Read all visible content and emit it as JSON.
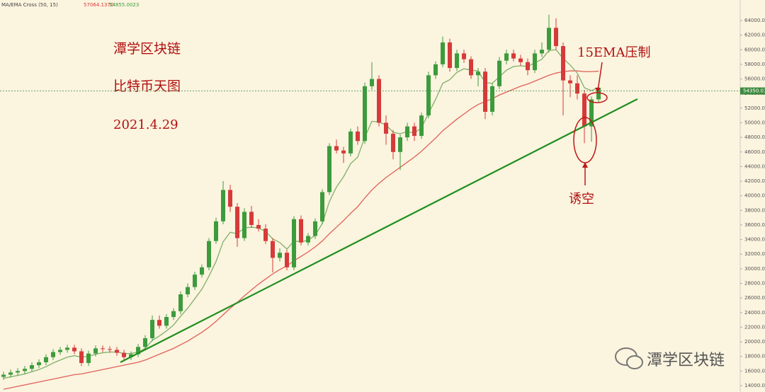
{
  "chart_data": {
    "type": "candlestick",
    "indicator": "MA/EMA Cross (50, 15)",
    "readouts": [
      {
        "value": 57064.137,
        "label": "57064.1370",
        "color": "#d63a3a"
      },
      {
        "value": 54855.0023,
        "label": "54855.0023",
        "color": "#3d9b3d"
      }
    ],
    "up_color": "#3d9b3d",
    "down_color": "#d63a3a",
    "ylim": [
      13128,
      66810
    ],
    "yticks": [
      {
        "value": 14000,
        "label": "14000.00"
      },
      {
        "value": 16000,
        "label": "16000.00"
      },
      {
        "value": 18000,
        "label": "18000.00"
      },
      {
        "value": 20000,
        "label": "20000.00"
      },
      {
        "value": 22000,
        "label": "22000.00"
      },
      {
        "value": 24000,
        "label": "24000.00"
      },
      {
        "value": 26000,
        "label": "26000.00"
      },
      {
        "value": 28000,
        "label": "28000.00"
      },
      {
        "value": 30000,
        "label": "30000.00"
      },
      {
        "value": 32000,
        "label": "32000.00"
      },
      {
        "value": 34000,
        "label": "34000.00"
      },
      {
        "value": 36000,
        "label": "36000.00"
      },
      {
        "value": 38000,
        "label": "38000.00"
      },
      {
        "value": 40000,
        "label": "40000.00"
      },
      {
        "value": 42000,
        "label": "42000.00"
      },
      {
        "value": 44000,
        "label": "44000.00"
      },
      {
        "value": 46000,
        "label": "46000.00"
      },
      {
        "value": 48000,
        "label": "48000.00"
      },
      {
        "value": 50000,
        "label": "50000.00"
      },
      {
        "value": 52000,
        "label": "52000.00"
      },
      {
        "value": 54000,
        "label": "54000.00"
      },
      {
        "value": 56000,
        "label": "56000.00"
      },
      {
        "value": 58000,
        "label": "58000.00"
      },
      {
        "value": 60000,
        "label": "60000.00"
      },
      {
        "value": 62000,
        "label": "62000.00"
      },
      {
        "value": 64000,
        "label": "64000.00"
      }
    ],
    "last_price": 54350.01,
    "last_price_color": "#3d8a3d",
    "ohlc": [
      [
        15200,
        15900,
        14800,
        15500
      ],
      [
        15500,
        16200,
        15100,
        15800
      ],
      [
        15800,
        16400,
        15400,
        16000
      ],
      [
        16000,
        16700,
        15600,
        16300
      ],
      [
        16300,
        17200,
        15900,
        16800
      ],
      [
        16800,
        17600,
        16400,
        17200
      ],
      [
        17200,
        18300,
        16800,
        17900
      ],
      [
        17900,
        19000,
        17500,
        18600
      ],
      [
        18600,
        19300,
        18200,
        18900
      ],
      [
        18900,
        19600,
        18500,
        19200
      ],
      [
        19200,
        19600,
        18300,
        18700
      ],
      [
        18700,
        19100,
        16700,
        17100
      ],
      [
        17100,
        18800,
        16700,
        18400
      ],
      [
        18400,
        19500,
        18000,
        19100
      ],
      [
        19100,
        19500,
        18600,
        19000
      ],
      [
        19000,
        19400,
        18500,
        18900
      ],
      [
        18900,
        19300,
        18100,
        18500
      ],
      [
        18500,
        18900,
        17500,
        17900
      ],
      [
        17900,
        18700,
        17500,
        18300
      ],
      [
        18300,
        19700,
        17900,
        19300
      ],
      [
        19300,
        20900,
        18900,
        20500
      ],
      [
        20500,
        23600,
        20100,
        23000
      ],
      [
        23000,
        23600,
        21800,
        22200
      ],
      [
        22200,
        23800,
        21800,
        23400
      ],
      [
        23400,
        24600,
        23000,
        24200
      ],
      [
        24200,
        26900,
        23800,
        26500
      ],
      [
        26500,
        28000,
        26100,
        27500
      ],
      [
        27500,
        29600,
        27100,
        29200
      ],
      [
        29200,
        30600,
        28800,
        30200
      ],
      [
        30200,
        34200,
        29800,
        33800
      ],
      [
        33800,
        37000,
        33400,
        36500
      ],
      [
        36500,
        42000,
        36100,
        40800
      ],
      [
        40800,
        41500,
        37800,
        38500
      ],
      [
        38500,
        39000,
        33000,
        34200
      ],
      [
        34200,
        38300,
        33800,
        37800
      ],
      [
        37800,
        38600,
        35600,
        36000
      ],
      [
        36000,
        36800,
        35100,
        35500
      ],
      [
        35500,
        36100,
        33400,
        33800
      ],
      [
        33800,
        34200,
        29500,
        31500
      ],
      [
        31500,
        32800,
        31000,
        32200
      ],
      [
        32200,
        32600,
        29800,
        30200
      ],
      [
        30200,
        37200,
        29800,
        36800
      ],
      [
        36800,
        37300,
        33200,
        33600
      ],
      [
        33600,
        34900,
        33200,
        34500
      ],
      [
        34500,
        36900,
        34100,
        36500
      ],
      [
        36500,
        40900,
        36100,
        40500
      ],
      [
        40500,
        47200,
        40100,
        46800
      ],
      [
        46800,
        47700,
        45800,
        46200
      ],
      [
        46200,
        46700,
        44500,
        45800
      ],
      [
        45800,
        49200,
        45400,
        48800
      ],
      [
        48800,
        49500,
        47000,
        47500
      ],
      [
        47500,
        55500,
        47100,
        55000
      ],
      [
        55000,
        58300,
        54500,
        56000
      ],
      [
        56000,
        56500,
        49500,
        50000
      ],
      [
        50000,
        51000,
        47000,
        48500
      ],
      [
        48500,
        49000,
        45000,
        46000
      ],
      [
        46000,
        48400,
        43500,
        48000
      ],
      [
        48000,
        50000,
        47500,
        49500
      ],
      [
        49500,
        50000,
        47500,
        48200
      ],
      [
        48200,
        51400,
        47800,
        51000
      ],
      [
        51000,
        57000,
        50600,
        56500
      ],
      [
        56500,
        58400,
        56000,
        58000
      ],
      [
        58000,
        61800,
        57600,
        61000
      ],
      [
        61000,
        61500,
        57000,
        57500
      ],
      [
        57500,
        60000,
        57100,
        59500
      ],
      [
        59500,
        60000,
        58200,
        58700
      ],
      [
        58700,
        59100,
        56000,
        56500
      ],
      [
        56500,
        57500,
        55000,
        57000
      ],
      [
        57000,
        57500,
        50500,
        51500
      ],
      [
        51500,
        55400,
        51000,
        55000
      ],
      [
        55000,
        59000,
        54600,
        58500
      ],
      [
        58500,
        60000,
        58000,
        59500
      ],
      [
        59500,
        60000,
        58400,
        58800
      ],
      [
        58800,
        59300,
        57800,
        58300
      ],
      [
        58300,
        58800,
        56500,
        57200
      ],
      [
        57200,
        60000,
        56800,
        59500
      ],
      [
        59500,
        61000,
        59000,
        60000
      ],
      [
        60000,
        64800,
        59600,
        63000
      ],
      [
        63000,
        64300,
        60000,
        60500
      ],
      [
        60500,
        61000,
        51000,
        55800
      ],
      [
        55800,
        56500,
        53500,
        55400
      ],
      [
        55400,
        56500,
        53200,
        54000
      ],
      [
        54000,
        54500,
        47200,
        49500
      ],
      [
        49500,
        53600,
        47400,
        53200
      ],
      [
        53200,
        55300,
        52800,
        54800
      ]
    ],
    "series": [
      {
        "color": "#e0605a",
        "values": [
          13500,
          13700,
          13900,
          14100,
          14300,
          14500,
          14700,
          14900,
          15100,
          15300,
          15500,
          15600,
          15800,
          16000,
          16200,
          16400,
          16600,
          16800,
          17000,
          17200,
          17500,
          17900,
          18300,
          18700,
          19100,
          19600,
          20100,
          20700,
          21300,
          22000,
          22800,
          23700,
          24600,
          25400,
          26300,
          27100,
          27900,
          28600,
          29300,
          29900,
          30400,
          31100,
          31700,
          32300,
          33000,
          33800,
          34800,
          35700,
          36600,
          37600,
          38500,
          39700,
          40800,
          41700,
          42500,
          43200,
          43900,
          44600,
          45300,
          46100,
          47000,
          47900,
          48900,
          49700,
          50500,
          51200,
          51900,
          52500,
          52900,
          53300,
          53800,
          54200,
          54600,
          55000,
          55300,
          55700,
          56100,
          56500,
          56800,
          57000,
          57100,
          57100,
          57000,
          57000,
          57064
        ]
      },
      {
        "color": "#7fb06a",
        "values": [
          15000,
          15200,
          15400,
          15600,
          15900,
          16200,
          16600,
          17100,
          17500,
          17900,
          18100,
          17900,
          18000,
          18300,
          18500,
          18600,
          18600,
          18400,
          18400,
          18600,
          19100,
          20200,
          20800,
          21500,
          22300,
          23500,
          24600,
          25900,
          27200,
          29000,
          31000,
          33700,
          35000,
          34800,
          35600,
          35700,
          35600,
          35100,
          34100,
          33600,
          32700,
          33800,
          33700,
          33900,
          34600,
          36200,
          39200,
          41200,
          42600,
          44400,
          45300,
          48000,
          50200,
          50100,
          49700,
          48700,
          48500,
          48800,
          48600,
          49300,
          51300,
          53200,
          55400,
          55900,
          56900,
          57400,
          57200,
          57100,
          55500,
          55400,
          56300,
          57200,
          57700,
          57800,
          57700,
          58200,
          58700,
          59900,
          60000,
          58800,
          57900,
          56800,
          54800,
          54400,
          54855
        ]
      }
    ],
    "trendline": {
      "x": [
        16.5,
        89.5
      ],
      "values": [
        17200,
        53250
      ],
      "color": "#1f8f1f"
    },
    "annotations": {
      "title": "潭学区块链",
      "subtitle": "比特币天图",
      "date": "2021.4.29",
      "resistance": "15EMA压制",
      "bear_trap": "诱空"
    },
    "watermark": "潭学区块链"
  }
}
